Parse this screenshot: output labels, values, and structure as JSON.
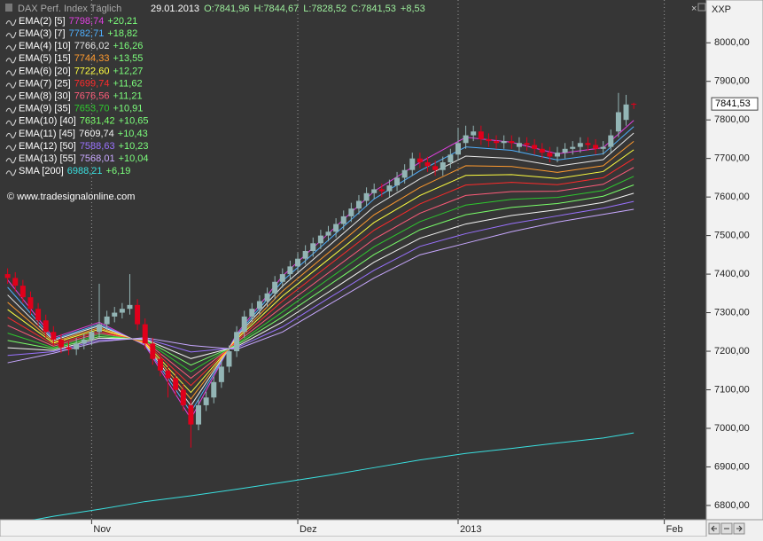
{
  "chart_data": {
    "type": "candlestick",
    "title": "DAX Perf. Index Täglich",
    "header": {
      "date": "29.01.2013",
      "open": "O:7841,96",
      "high": "H:7844,67",
      "low": "L:7828,52",
      "close": "C:7841,53",
      "change": "+8,53"
    },
    "symbol": "XXP",
    "watermark": "© www.tradesignalonline.com",
    "last_price_label": "7841,53",
    "up_color": "#93b5b5",
    "down_color": "#e0001b",
    "xlim": [
      -1,
      91.5
    ],
    "xticks": [
      {
        "value": 11,
        "label": "Nov"
      },
      {
        "value": 38,
        "label": "Dez"
      },
      {
        "value": 59,
        "label": "2013"
      },
      {
        "value": 86,
        "label": "Feb"
      }
    ],
    "ylim": [
      6763,
      8111
    ],
    "yticks": [
      {
        "value": 6800,
        "label": "6800,00"
      },
      {
        "value": 6900,
        "label": "6900,00"
      },
      {
        "value": 7000,
        "label": "7000,00"
      },
      {
        "value": 7100,
        "label": "7100,00"
      },
      {
        "value": 7200,
        "label": "7200,00"
      },
      {
        "value": 7300,
        "label": "7300,00"
      },
      {
        "value": 7400,
        "label": "7400,00"
      },
      {
        "value": 7500,
        "label": "7500,00"
      },
      {
        "value": 7600,
        "label": "7600,00"
      },
      {
        "value": 7700,
        "label": "7700,00"
      },
      {
        "value": 7800,
        "label": "7800,00"
      },
      {
        "value": 7900,
        "label": "7900,00"
      },
      {
        "value": 8000,
        "label": "8000,00"
      }
    ],
    "ohlc": {
      "open": [
        7400,
        7390,
        7370,
        7340,
        7310,
        7280,
        7250,
        7230,
        7210,
        7205,
        7220,
        7230,
        7250,
        7270,
        7290,
        7300,
        7310,
        7320,
        7270,
        7220,
        7180,
        7150,
        7130,
        7100,
        7060,
        7010,
        7060,
        7080,
        7120,
        7160,
        7200,
        7250,
        7290,
        7310,
        7330,
        7350,
        7380,
        7400,
        7420,
        7440,
        7460,
        7480,
        7500,
        7510,
        7530,
        7550,
        7570,
        7590,
        7610,
        7620,
        7615,
        7630,
        7650,
        7670,
        7700,
        7690,
        7680,
        7670,
        7690,
        7710,
        7740,
        7760,
        7770,
        7750,
        7745,
        7740,
        7745,
        7730,
        7740,
        7735,
        7725,
        7715,
        7705,
        7715,
        7725,
        7730,
        7740,
        7735,
        7725,
        7730,
        7770,
        7800,
        7841.96
      ],
      "high": [
        7415,
        7405,
        7385,
        7355,
        7325,
        7295,
        7265,
        7245,
        7225,
        7235,
        7245,
        7265,
        7375,
        7305,
        7315,
        7325,
        7400,
        7335,
        7285,
        7235,
        7195,
        7165,
        7145,
        7115,
        7075,
        7075,
        7095,
        7135,
        7175,
        7215,
        7265,
        7305,
        7325,
        7345,
        7365,
        7395,
        7415,
        7435,
        7455,
        7475,
        7495,
        7515,
        7525,
        7545,
        7565,
        7585,
        7605,
        7625,
        7635,
        7635,
        7645,
        7665,
        7685,
        7715,
        7715,
        7705,
        7695,
        7705,
        7725,
        7780,
        7785,
        7785,
        7785,
        7765,
        7760,
        7760,
        7760,
        7755,
        7755,
        7750,
        7740,
        7730,
        7730,
        7740,
        7745,
        7755,
        7755,
        7750,
        7745,
        7775,
        7870,
        7865,
        7844.67
      ],
      "low": [
        7375,
        7355,
        7325,
        7295,
        7265,
        7235,
        7215,
        7195,
        7190,
        7190,
        7205,
        7215,
        7235,
        7255,
        7275,
        7285,
        7295,
        7255,
        7205,
        7165,
        7135,
        7080,
        7085,
        7045,
        6950,
        6995,
        7045,
        7065,
        7105,
        7145,
        7185,
        7235,
        7275,
        7295,
        7315,
        7335,
        7365,
        7385,
        7405,
        7425,
        7445,
        7465,
        7485,
        7495,
        7515,
        7535,
        7555,
        7575,
        7595,
        7600,
        7600,
        7615,
        7635,
        7655,
        7675,
        7665,
        7655,
        7655,
        7675,
        7695,
        7725,
        7745,
        7735,
        7730,
        7725,
        7725,
        7725,
        7715,
        7720,
        7710,
        7700,
        7690,
        7690,
        7700,
        7710,
        7715,
        7720,
        7710,
        7710,
        7715,
        7755,
        7785,
        7828.52
      ],
      "close": [
        7390,
        7370,
        7340,
        7310,
        7280,
        7250,
        7230,
        7210,
        7205,
        7220,
        7230,
        7250,
        7270,
        7290,
        7300,
        7310,
        7320,
        7270,
        7220,
        7180,
        7150,
        7130,
        7100,
        7060,
        7010,
        7060,
        7080,
        7120,
        7160,
        7200,
        7250,
        7290,
        7310,
        7330,
        7350,
        7380,
        7400,
        7420,
        7440,
        7460,
        7480,
        7500,
        7510,
        7530,
        7550,
        7570,
        7590,
        7610,
        7620,
        7615,
        7630,
        7650,
        7670,
        7700,
        7690,
        7680,
        7670,
        7690,
        7710,
        7740,
        7760,
        7770,
        7750,
        7745,
        7740,
        7745,
        7740,
        7740,
        7735,
        7725,
        7715,
        7705,
        7715,
        7725,
        7730,
        7740,
        7735,
        7725,
        7730,
        7760,
        7820,
        7840,
        7841.53
      ]
    },
    "lines": {
      "x": [
        0,
        6,
        12,
        18,
        24,
        30,
        36,
        42,
        48,
        54,
        60,
        66,
        72,
        78,
        82
      ],
      "series": [
        {
          "name": "EMA(2) [5]",
          "color": "#e040e0",
          "change": "+20,21",
          "values": [
            7385,
            7235,
            7275,
            7215,
            7025,
            7245,
            7395,
            7505,
            7615,
            7690,
            7755,
            7742,
            7712,
            7728,
            7798.74
          ],
          "value_labels": [
            null,
            null,
            null,
            null,
            null,
            null,
            null,
            null,
            null,
            null,
            null,
            null,
            null,
            null,
            "7798,74"
          ]
        },
        {
          "name": "EMA(3) [7]",
          "color": "#4fb0ff",
          "change": "+18,82",
          "values": [
            7366,
            7231,
            7270,
            7217,
            7042,
            7241,
            7382,
            7488,
            7595,
            7668,
            7730,
            7721,
            7696,
            7712,
            7782.71
          ],
          "value_labels": [
            null,
            null,
            null,
            null,
            null,
            null,
            null,
            null,
            null,
            null,
            null,
            null,
            null,
            null,
            "7782,71"
          ]
        },
        {
          "name": "EMA(4) [10]",
          "color": "#e8e8e8",
          "change": "+16,26",
          "values": [
            7346,
            7228,
            7266,
            7219,
            7059,
            7238,
            7369,
            7472,
            7575,
            7647,
            7706,
            7700,
            7680,
            7697,
            7766.02
          ],
          "value_labels": [
            null,
            null,
            null,
            null,
            null,
            null,
            null,
            null,
            null,
            null,
            null,
            null,
            null,
            null,
            "7766,02"
          ]
        },
        {
          "name": "EMA(5) [15]",
          "color": "#ff9a2e",
          "change": "+13,55",
          "values": [
            7327,
            7224,
            7261,
            7220,
            7076,
            7234,
            7356,
            7455,
            7554,
            7625,
            7681,
            7679,
            7664,
            7681,
            7744.33
          ],
          "value_labels": [
            null,
            null,
            null,
            null,
            null,
            null,
            null,
            null,
            null,
            null,
            null,
            null,
            null,
            null,
            "7744,33"
          ]
        },
        {
          "name": "EMA(6) [20]",
          "color": "#ffff40",
          "change": "+12,27",
          "values": [
            7308,
            7221,
            7257,
            7222,
            7093,
            7231,
            7343,
            7438,
            7534,
            7604,
            7656,
            7658,
            7648,
            7666,
            7722.6
          ],
          "value_labels": [
            null,
            null,
            null,
            null,
            null,
            null,
            null,
            null,
            null,
            null,
            null,
            null,
            null,
            null,
            "7722,60"
          ]
        },
        {
          "name": "EMA(7) [25]",
          "color": "#ff2a2a",
          "change": "+11,62",
          "values": [
            7288,
            7217,
            7252,
            7224,
            7111,
            7227,
            7330,
            7422,
            7514,
            7582,
            7631,
            7638,
            7632,
            7650,
            7699.74
          ],
          "value_labels": [
            null,
            null,
            null,
            null,
            null,
            null,
            null,
            null,
            null,
            null,
            null,
            null,
            null,
            null,
            "7699,74"
          ]
        },
        {
          "name": "EMA(8) [30]",
          "color": "#ff5c7a",
          "change": "+11,21",
          "values": [
            7267,
            7213,
            7247,
            7226,
            7130,
            7223,
            7315,
            7403,
            7491,
            7558,
            7604,
            7614,
            7615,
            7633,
            7676.56
          ],
          "value_labels": [
            null,
            null,
            null,
            null,
            null,
            null,
            null,
            null,
            null,
            null,
            null,
            null,
            null,
            null,
            "7676,56"
          ]
        },
        {
          "name": "EMA(9) [35]",
          "color": "#2ec82e",
          "change": "+10,91",
          "values": [
            7247,
            7209,
            7243,
            7228,
            7147,
            7219,
            7302,
            7387,
            7471,
            7536,
            7579,
            7594,
            7599,
            7617,
            7653.7
          ],
          "value_labels": [
            null,
            null,
            null,
            null,
            null,
            null,
            null,
            null,
            null,
            null,
            null,
            null,
            null,
            null,
            "7653,70"
          ]
        },
        {
          "name": "EMA(10) [40]",
          "color": "#7aff6a",
          "change": "+10,65",
          "values": [
            7228,
            7206,
            7238,
            7230,
            7164,
            7216,
            7289,
            7370,
            7451,
            7515,
            7554,
            7573,
            7583,
            7602,
            7631.42
          ],
          "value_labels": [
            null,
            null,
            null,
            null,
            null,
            null,
            null,
            null,
            null,
            null,
            null,
            null,
            null,
            null,
            "7631,42"
          ]
        },
        {
          "name": "EMA(11) [45]",
          "color": "#f4f4f4",
          "change": "+10,43",
          "values": [
            7209,
            7202,
            7234,
            7231,
            7181,
            7212,
            7276,
            7353,
            7431,
            7493,
            7530,
            7552,
            7567,
            7586,
            7609.74
          ],
          "value_labels": [
            null,
            null,
            null,
            null,
            null,
            null,
            null,
            null,
            null,
            null,
            null,
            null,
            null,
            null,
            "7609,74"
          ]
        },
        {
          "name": "EMA(12) [50]",
          "color": "#9a72ff",
          "change": "+10,23",
          "values": [
            7189,
            7199,
            7229,
            7233,
            7198,
            7209,
            7263,
            7337,
            7410,
            7472,
            7505,
            7531,
            7551,
            7571,
            7588.63
          ],
          "value_labels": [
            null,
            null,
            null,
            null,
            null,
            null,
            null,
            null,
            null,
            null,
            null,
            null,
            null,
            null,
            "7588,63"
          ]
        },
        {
          "name": "EMA(13) [55]",
          "color": "#c8a8ff",
          "change": "+10,04",
          "values": [
            7170,
            7195,
            7225,
            7235,
            7215,
            7205,
            7250,
            7320,
            7390,
            7450,
            7480,
            7510,
            7535,
            7555,
            7568.01
          ],
          "value_labels": [
            null,
            null,
            null,
            null,
            null,
            null,
            null,
            null,
            null,
            null,
            null,
            null,
            null,
            null,
            "7568,01"
          ]
        },
        {
          "name": "SMA [200]",
          "color": "#3ae0e0",
          "change": "+6,19",
          "values": [
            6750,
            6772,
            6790,
            6810,
            6825,
            6842,
            6860,
            6878,
            6898,
            6918,
            6935,
            6948,
            6962,
            6975,
            6988.21
          ],
          "value_labels": [
            null,
            null,
            null,
            null,
            null,
            null,
            null,
            null,
            null,
            null,
            null,
            null,
            null,
            null,
            "6988,21"
          ]
        }
      ]
    }
  }
}
